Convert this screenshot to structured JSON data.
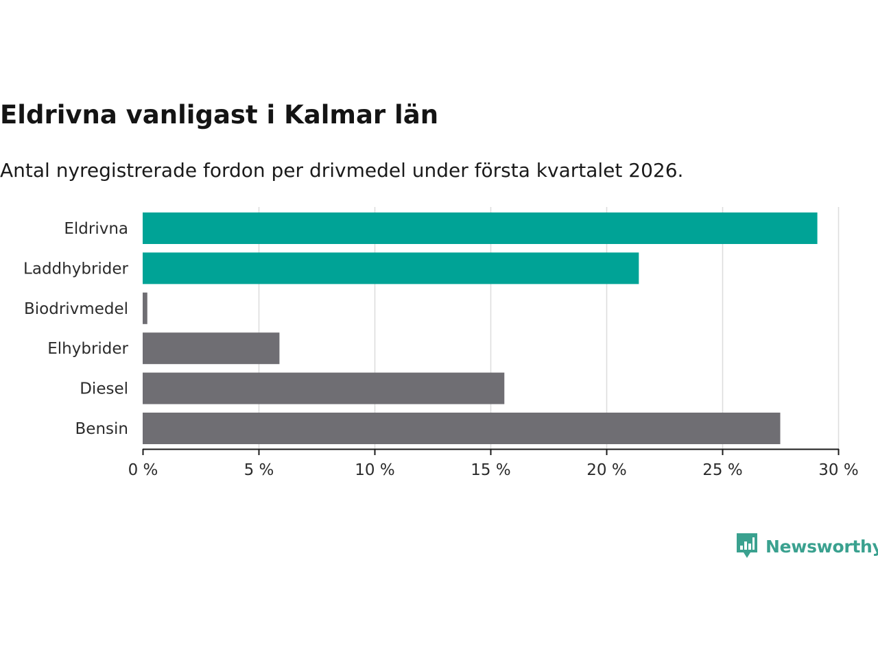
{
  "colors": {
    "highlight": "#00a396",
    "default": "#6f6e73",
    "grid": "#dcdcdc",
    "axis": "#1a1a1a",
    "brand": "#3aa18f"
  },
  "brand": {
    "name": "Newsworthy",
    "icon": "newsworthy-logo-icon"
  },
  "chart_data": {
    "type": "bar",
    "orientation": "horizontal",
    "title": "Eldrivna vanligast i Kalmar län",
    "subtitle": "Antal nyregistrerade fordon per drivmedel under första kvartalet 2026.",
    "xlabel": "",
    "ylabel": "",
    "unit": "%",
    "categories": [
      "Eldrivna",
      "Laddhybrider",
      "Biodrivmedel",
      "Elhybrider",
      "Diesel",
      "Bensin"
    ],
    "values": [
      29.1,
      21.4,
      0.2,
      5.9,
      15.6,
      27.5
    ],
    "highlighted": [
      true,
      true,
      false,
      false,
      false,
      false
    ],
    "xlim": [
      0,
      30
    ],
    "xticks": [
      0,
      5,
      10,
      15,
      20,
      25,
      30
    ],
    "xtick_labels": [
      "0 %",
      "5 %",
      "10 %",
      "15 %",
      "20 %",
      "25 %",
      "30 %"
    ],
    "grid": true,
    "legend": "none"
  }
}
